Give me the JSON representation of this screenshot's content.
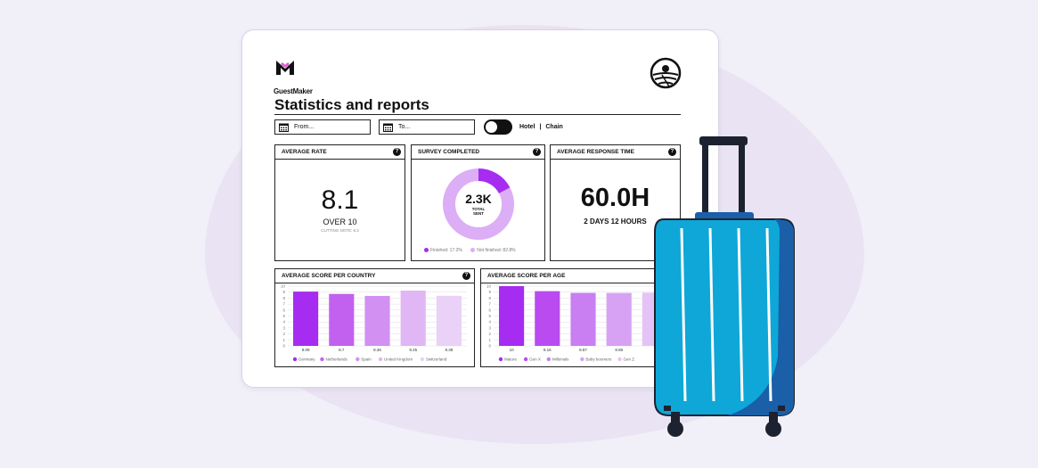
{
  "brand": {
    "name": "GuestMaker"
  },
  "page": {
    "title": "Statistics and reports"
  },
  "filters": {
    "from_placeholder": "From...",
    "to_placeholder": "To...",
    "segment_hotel": "Hotel",
    "segment_sep": "|",
    "segment_chain": "Chain"
  },
  "kpis": {
    "average_rate": {
      "header": "AVERAGE RATE",
      "value": "8.1",
      "sub": "OVER 10",
      "note": "CUTTING NOTE: 6.3"
    },
    "survey_completed": {
      "header": "SURVEY COMPLETED",
      "value": "2.3K",
      "sub1": "TOTAL",
      "sub2": "SENT",
      "finished_label": "Finished: 17.2%",
      "not_finished_label": "Not finished: 82.8%",
      "finished_fraction": 0.172,
      "finished_color": "#a52cf0",
      "not_finished_color": "#dcaef6"
    },
    "average_response_time": {
      "header": "AVERAGE RESPONSE TIME",
      "value": "60.0H",
      "sub": "2 DAYS 12 HOURS"
    }
  },
  "help_icon": "?",
  "colors": {
    "accent": "#a52cf0",
    "suitcase": "#0ea7d8",
    "suitcase_shadow": "#1a5fa8"
  },
  "chart_data": [
    {
      "type": "bar",
      "title": "AVERAGE SCORE PER COUNTRY",
      "categories": [
        "Germany",
        "Netherlands",
        "Spain",
        "United Kingdom",
        "Switzerland"
      ],
      "values": [
        9.09,
        8.7,
        8.36,
        9.25,
        8.38
      ],
      "value_labels": [
        "9.09",
        "8.7",
        "8.36",
        "9.25",
        "8.38"
      ],
      "colors": [
        "#a52cf0",
        "#c261ef",
        "#d190f2",
        "#e0b6f5",
        "#ead1f7"
      ],
      "ylim": [
        0,
        10
      ],
      "yticks": [
        "0",
        "1",
        "2",
        "3",
        "4",
        "5",
        "6",
        "7",
        "8",
        "9",
        "10"
      ],
      "grid": true
    },
    {
      "type": "bar",
      "title": "AVERAGE SCORE PER AGE",
      "categories": [
        "Mature",
        "Gen X",
        "Millenials",
        "Baby boomers",
        "Gen Z"
      ],
      "values": [
        10,
        9.16,
        8.87,
        8.86,
        8.9
      ],
      "value_labels": [
        "10",
        "9.16",
        "8.87",
        "8.86",
        ""
      ],
      "colors": [
        "#a52cf0",
        "#b94bf0",
        "#c97ef2",
        "#d7a1f4",
        "#e5c3f6"
      ],
      "ylim": [
        0,
        10
      ],
      "yticks": [
        "0",
        "1",
        "2",
        "3",
        "4",
        "5",
        "6",
        "7",
        "8",
        "9",
        "10"
      ],
      "grid": true
    }
  ]
}
